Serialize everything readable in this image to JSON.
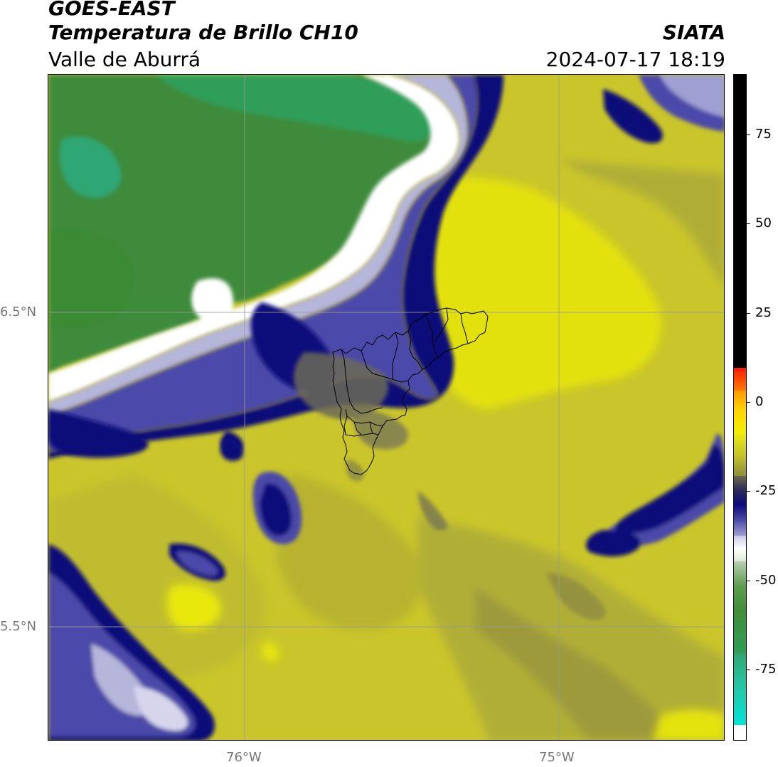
{
  "header": {
    "product": "GOES-EAST",
    "channel": "Temperatura de Brillo CH10",
    "region": "Valle de Aburrá",
    "agency": "SIATA",
    "datetime": "2024-07-17 18:19"
  },
  "map": {
    "lat_labels": [
      "6.5°N",
      "5.5°N"
    ],
    "lon_labels": [
      "76°W",
      "75°W"
    ],
    "colors": {
      "warm_yellow": "#d6d21a",
      "yellow_bright": "#e6e40c",
      "olive": "#a7a634",
      "dark_olive": "#7d7a45",
      "navy": "#0c0a78",
      "blue_purple": "#4b4aa8",
      "lavender": "#b9b8dc",
      "white": "#ffffff",
      "pale_green": "#b7d0b0",
      "green": "#3f8f3a",
      "teal_green": "#2faa6a"
    }
  },
  "colorbar": {
    "tick_labels": [
      "75",
      "50",
      "25",
      "0",
      "-25",
      "-50",
      "-75"
    ],
    "tick_values": [
      75,
      50,
      25,
      0,
      -25,
      -50,
      -75
    ],
    "range": [
      -95,
      92
    ]
  }
}
